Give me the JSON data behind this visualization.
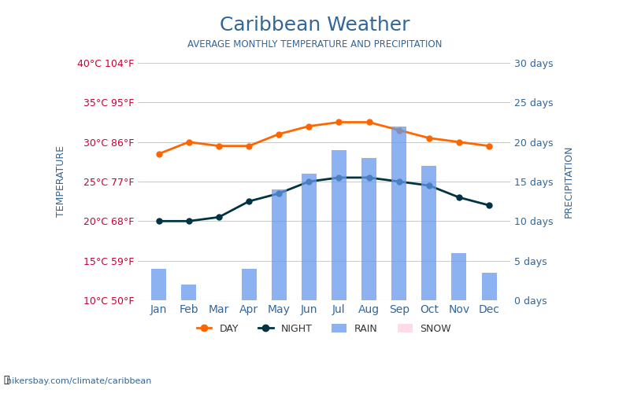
{
  "title": "Caribbean Weather",
  "subtitle": "AVERAGE MONTHLY TEMPERATURE AND PRECIPITATION",
  "months": [
    "Jan",
    "Feb",
    "Mar",
    "Apr",
    "May",
    "Jun",
    "Jul",
    "Aug",
    "Sep",
    "Oct",
    "Nov",
    "Dec"
  ],
  "day_temp": [
    28.5,
    30.0,
    29.5,
    29.5,
    31.0,
    32.0,
    32.5,
    32.5,
    31.5,
    30.5,
    30.0,
    29.5
  ],
  "night_temp": [
    20.0,
    20.0,
    20.5,
    22.5,
    23.5,
    25.0,
    25.5,
    25.5,
    25.0,
    24.5,
    23.0,
    22.0
  ],
  "rain_days": [
    4.0,
    2.0,
    0.0,
    4.0,
    14.0,
    16.0,
    19.0,
    18.0,
    22.0,
    17.0,
    6.0,
    3.5
  ],
  "snow_days": [
    0,
    0,
    0,
    0,
    0,
    0,
    0,
    0,
    0,
    0,
    0,
    0
  ],
  "temp_ylim": [
    10,
    40
  ],
  "precip_ylim": [
    0,
    30
  ],
  "temp_ticks": [
    10,
    15,
    20,
    25,
    30,
    35,
    40
  ],
  "temp_tick_labels_left": [
    "10°C 50°F",
    "15°C 59°F",
    "20°C 68°F",
    "25°C 77°F",
    "30°C 86°F",
    "35°C 95°F",
    "40°C 104°F"
  ],
  "precip_ticks": [
    0,
    5,
    10,
    15,
    20,
    25,
    30
  ],
  "precip_tick_labels_right": [
    "0 days",
    "5 days",
    "10 days",
    "15 days",
    "20 days",
    "25 days",
    "30 days"
  ],
  "ylabel_left": "TEMPERATURE",
  "ylabel_right": "PRECIPITATION",
  "bar_color": "#6699ee",
  "bar_alpha": 0.75,
  "day_color": "#ff6600",
  "night_color": "#003344",
  "title_color": "#336699",
  "subtitle_color": "#336699",
  "left_tick_color": "#cc0033",
  "right_tick_color": "#336699",
  "grid_color": "#cccccc",
  "bg_color": "#ffffff",
  "watermark": "hikersbay.com/climate/caribbean"
}
